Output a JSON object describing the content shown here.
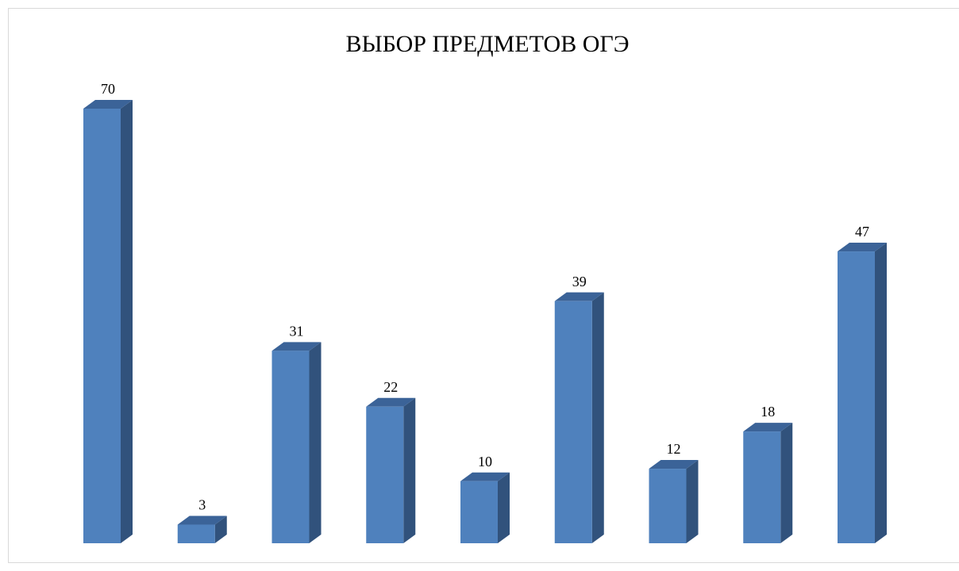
{
  "chart_data": {
    "type": "bar3d",
    "title": "ВЫБОР ПРЕДМЕТОВ ОГЭ",
    "categories": [
      null,
      null,
      null,
      null,
      null,
      null,
      null,
      null,
      null
    ],
    "values": [
      70,
      3,
      31,
      22,
      10,
      39,
      12,
      18,
      47
    ],
    "color": "#4f81bd",
    "data_labels": true
  }
}
